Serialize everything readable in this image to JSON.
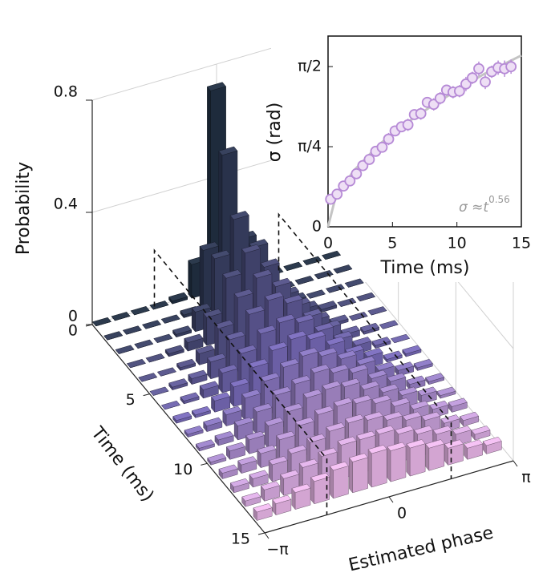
{
  "chart_data": [
    {
      "type": "bar3d",
      "xlabel": "Estimated phase",
      "ylabel": "Time (ms)",
      "zlabel": "Probability",
      "phase": [
        -2.9,
        -2.42,
        -1.93,
        -1.45,
        -0.97,
        -0.48,
        0,
        0.48,
        0.97,
        1.45,
        1.93,
        2.42,
        2.9
      ],
      "time": [
        0,
        1,
        2,
        3,
        4,
        5,
        6,
        7,
        8,
        9,
        10,
        11,
        12,
        13,
        14
      ],
      "values": [
        [
          0,
          0,
          0,
          0,
          0.01,
          0.12,
          0.72,
          0.12,
          0.01,
          0,
          0,
          0,
          0
        ],
        [
          0,
          0,
          0,
          0,
          0.01,
          0.22,
          0.54,
          0.22,
          0.01,
          0,
          0,
          0,
          0
        ],
        [
          0,
          0,
          0,
          0.01,
          0.07,
          0.24,
          0.36,
          0.24,
          0.07,
          0.01,
          0,
          0,
          0
        ],
        [
          0,
          0,
          0.01,
          0.03,
          0.1,
          0.22,
          0.29,
          0.22,
          0.1,
          0.03,
          0.01,
          0,
          0
        ],
        [
          0,
          0,
          0.01,
          0.04,
          0.11,
          0.2,
          0.25,
          0.2,
          0.11,
          0.04,
          0.01,
          0,
          0
        ],
        [
          0,
          0.01,
          0.02,
          0.06,
          0.12,
          0.19,
          0.22,
          0.19,
          0.12,
          0.06,
          0.02,
          0.01,
          0
        ],
        [
          0,
          0.01,
          0.03,
          0.07,
          0.12,
          0.17,
          0.19,
          0.17,
          0.12,
          0.07,
          0.03,
          0.01,
          0
        ],
        [
          0.01,
          0.01,
          0.04,
          0.07,
          0.12,
          0.16,
          0.18,
          0.16,
          0.12,
          0.07,
          0.04,
          0.01,
          0.01
        ],
        [
          0.01,
          0.02,
          0.04,
          0.08,
          0.12,
          0.15,
          0.17,
          0.15,
          0.12,
          0.08,
          0.04,
          0.02,
          0.01
        ],
        [
          0.01,
          0.02,
          0.05,
          0.08,
          0.12,
          0.14,
          0.16,
          0.14,
          0.12,
          0.08,
          0.05,
          0.02,
          0.01
        ],
        [
          0.01,
          0.03,
          0.05,
          0.08,
          0.11,
          0.14,
          0.15,
          0.14,
          0.11,
          0.08,
          0.05,
          0.03,
          0.01
        ],
        [
          0.02,
          0.03,
          0.05,
          0.08,
          0.11,
          0.13,
          0.14,
          0.13,
          0.11,
          0.08,
          0.05,
          0.03,
          0.02
        ],
        [
          0.02,
          0.03,
          0.06,
          0.08,
          0.1,
          0.12,
          0.13,
          0.12,
          0.1,
          0.08,
          0.06,
          0.03,
          0.02
        ],
        [
          0.02,
          0.04,
          0.06,
          0.08,
          0.1,
          0.12,
          0.12,
          0.12,
          0.1,
          0.08,
          0.06,
          0.04,
          0.02
        ],
        [
          0.03,
          0.04,
          0.06,
          0.08,
          0.1,
          0.11,
          0.12,
          0.11,
          0.1,
          0.08,
          0.06,
          0.04,
          0.03
        ]
      ],
      "xlim": [
        -3.1416,
        3.1416
      ],
      "xticks": [
        {
          "value": -3.1416,
          "label": "−π"
        },
        0,
        {
          "value": 3.1416,
          "label": "π"
        }
      ],
      "ylim": [
        0,
        15
      ],
      "yticks": [
        0,
        5,
        10,
        15
      ],
      "zlim": [
        0,
        0.8
      ],
      "zticks": [
        0,
        0.4,
        0.8
      ],
      "colorscale": [
        "#1e2b3c",
        "#6b5fa5",
        "#d3a5d2"
      ],
      "grid": true
    },
    {
      "type": "scatter",
      "xlabel": "Time (ms)",
      "ylabel": "σ (rad)",
      "x": [
        0.2,
        0.7,
        1.2,
        1.7,
        2.2,
        2.7,
        3.2,
        3.7,
        4.2,
        4.7,
        5.2,
        5.7,
        6.2,
        6.7,
        7.2,
        7.7,
        8.2,
        8.7,
        9.2,
        9.7,
        10.2,
        10.7,
        11.2,
        11.7,
        12.2,
        12.7,
        13.2,
        13.7,
        14.2
      ],
      "values": [
        0.27,
        0.32,
        0.4,
        0.45,
        0.52,
        0.6,
        0.66,
        0.74,
        0.78,
        0.86,
        0.94,
        0.98,
        1.0,
        1.1,
        1.11,
        1.22,
        1.2,
        1.26,
        1.34,
        1.32,
        1.33,
        1.4,
        1.46,
        1.55,
        1.42,
        1.52,
        1.56,
        1.55,
        1.57
      ],
      "errors": [
        0.05,
        0.04,
        0.05,
        0.04,
        0.05,
        0.05,
        0.04,
        0.05,
        0.05,
        0.06,
        0.05,
        0.05,
        0.06,
        0.05,
        0.06,
        0.05,
        0.06,
        0.06,
        0.05,
        0.06,
        0.06,
        0.07,
        0.06,
        0.07,
        0.07,
        0.06,
        0.07,
        0.08,
        0.07
      ],
      "color": "#b68ad6",
      "fill": "#eedff5",
      "fit": {
        "x": [
          0,
          0.5,
          1,
          2,
          4,
          6,
          8,
          10,
          12,
          15
        ],
        "values": [
          0,
          0.25,
          0.37,
          0.55,
          0.81,
          1.01,
          1.18,
          1.34,
          1.49,
          1.68
        ],
        "color": "#c4c4c4"
      },
      "xlim": [
        0,
        15
      ],
      "xticks": [
        0,
        5,
        10,
        15
      ],
      "ylim": [
        0,
        1.87
      ],
      "yticks": [
        0,
        {
          "value": 0.7854,
          "label": "π/4"
        },
        {
          "value": 1.5708,
          "label": "π/2"
        }
      ],
      "annotation": {
        "text": "σ ≈t",
        "superscript": "0.56"
      }
    }
  ]
}
